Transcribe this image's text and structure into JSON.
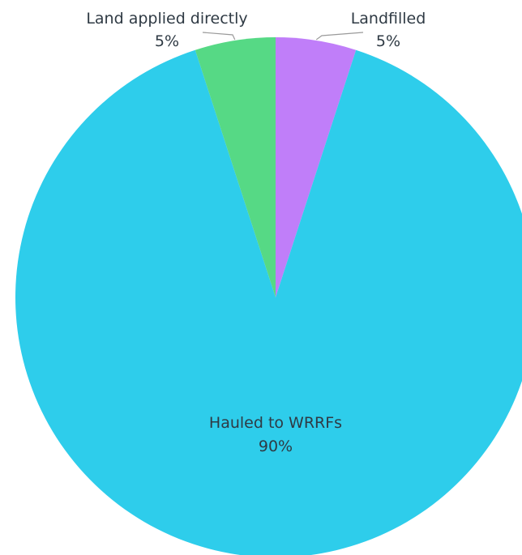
{
  "chart_data": {
    "type": "pie",
    "start_angle_deg": 0,
    "direction": "clockwise",
    "slices": [
      {
        "label": "Landfilled",
        "value_label": "5%",
        "value": 5,
        "color": "#c07ef9"
      },
      {
        "label": "Hauled to WRRFs",
        "value_label": "90%",
        "value": 90,
        "color": "#2ecdeb"
      },
      {
        "label": "Land applied directly",
        "value_label": "5%",
        "value": 5,
        "color": "#56d985"
      }
    ],
    "leader_line_color": "#9a9a9a"
  }
}
